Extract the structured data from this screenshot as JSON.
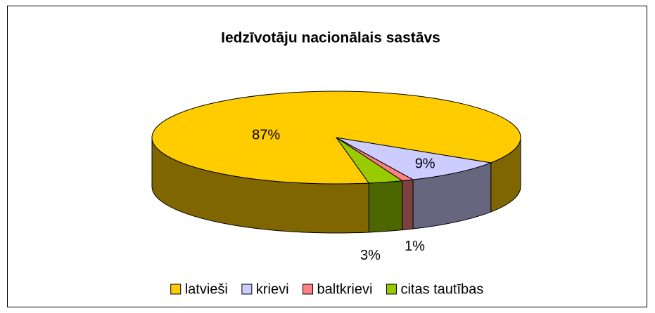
{
  "chart_data": {
    "type": "pie3d",
    "title": "Iedzīvotāju nacionālais sastāvs",
    "categories": [
      "latvieši",
      "krievi",
      "baltkrievi",
      "citas tautības"
    ],
    "values": [
      87,
      9,
      1,
      3
    ],
    "value_labels": [
      "87%",
      "9%",
      "1%",
      "3%"
    ],
    "colors": [
      "#ffcc00",
      "#ccccff",
      "#ff8080",
      "#99cc00"
    ],
    "legend": "bottom"
  }
}
